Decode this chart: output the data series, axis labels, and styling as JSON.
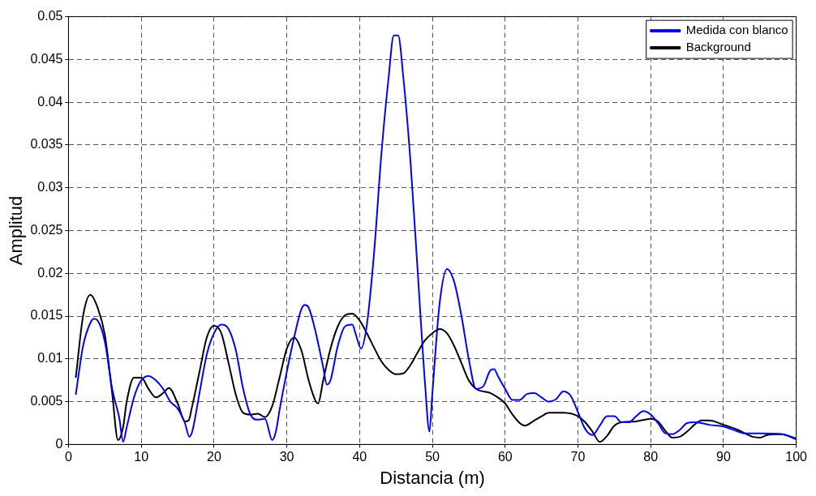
{
  "chart_data": {
    "type": "line",
    "xlabel": "Distancia (m)",
    "ylabel": "Amplitud",
    "xlim": [
      0,
      100
    ],
    "ylim": [
      0,
      0.05
    ],
    "xticks": [
      0,
      10,
      20,
      30,
      40,
      50,
      60,
      70,
      80,
      90,
      100
    ],
    "yticks": [
      0,
      0.005,
      0.01,
      0.015,
      0.02,
      0.025,
      0.03,
      0.035,
      0.04,
      0.045,
      0.05
    ],
    "grid": true,
    "legend": "top right",
    "marker": "none",
    "line_style": "solid",
    "series": [
      {
        "name": "Medida con blanco",
        "color": "#0000ff",
        "x": [
          1,
          2,
          3,
          3.5,
          4,
          5,
          6,
          7,
          7.5,
          8,
          9,
          10,
          11,
          12,
          13,
          14,
          15,
          16,
          16.6,
          17,
          18,
          19,
          20,
          21,
          22,
          23,
          24,
          25,
          26,
          27,
          28,
          28.5,
          29,
          30,
          31,
          32,
          32.5,
          33,
          34,
          35,
          35.5,
          36,
          37,
          38,
          39,
          39.5,
          40.2,
          41,
          42,
          43,
          44,
          44.7,
          45.3,
          46,
          47,
          48,
          49,
          49.6,
          50,
          51,
          52,
          53,
          54,
          55,
          56,
          57,
          58,
          58.5,
          59,
          60,
          61,
          62,
          63,
          64,
          65,
          66,
          67,
          68,
          69,
          70,
          71,
          72,
          73,
          74,
          75,
          76,
          77,
          78,
          79,
          80,
          81,
          82,
          83,
          84,
          85,
          86,
          87,
          88,
          90,
          92,
          93,
          95,
          98,
          100
        ],
        "values": [
          0.0058,
          0.0115,
          0.0142,
          0.0147,
          0.0145,
          0.012,
          0.0065,
          0.003,
          0.0003,
          0.002,
          0.0055,
          0.0075,
          0.008,
          0.0075,
          0.0065,
          0.005,
          0.0042,
          0.0025,
          0.0009,
          0.0015,
          0.006,
          0.0105,
          0.013,
          0.014,
          0.0135,
          0.011,
          0.0065,
          0.0035,
          0.0029,
          0.003,
          0.0005,
          0.0015,
          0.004,
          0.0085,
          0.0125,
          0.0158,
          0.0163,
          0.016,
          0.013,
          0.009,
          0.007,
          0.0075,
          0.0115,
          0.0138,
          0.014,
          0.0128,
          0.0112,
          0.014,
          0.0225,
          0.034,
          0.043,
          0.0478,
          0.0478,
          0.043,
          0.033,
          0.02,
          0.007,
          0.0015,
          0.006,
          0.0165,
          0.0205,
          0.019,
          0.015,
          0.01,
          0.0065,
          0.0068,
          0.0087,
          0.0088,
          0.008,
          0.0065,
          0.0052,
          0.0052,
          0.0059,
          0.006,
          0.0055,
          0.005,
          0.0053,
          0.0062,
          0.0057,
          0.0038,
          0.0018,
          0.0011,
          0.0022,
          0.0033,
          0.0033,
          0.0026,
          0.0026,
          0.0033,
          0.0039,
          0.0035,
          0.0025,
          0.0013,
          0.0012,
          0.0017,
          0.0025,
          0.0026,
          0.0025,
          0.0023,
          0.0021,
          0.0015,
          0.0013,
          0.0013,
          0.0012,
          0.0007
        ]
      },
      {
        "name": "Background",
        "color": "#000000",
        "x": [
          1,
          2,
          3,
          4,
          5,
          6,
          6.8,
          7.5,
          8,
          9,
          10,
          11,
          12,
          13,
          13.8,
          15,
          16,
          16.5,
          17,
          18,
          19,
          20,
          21,
          22,
          23,
          24,
          25,
          26,
          27,
          28,
          29,
          30,
          31,
          32,
          33,
          34,
          34.3,
          35,
          36,
          37,
          38,
          39,
          40,
          41,
          42,
          43,
          44,
          45,
          46,
          47,
          48,
          49,
          50,
          51,
          52,
          53,
          54,
          55,
          56,
          58,
          59,
          60,
          61,
          62,
          62.7,
          64,
          65,
          66,
          68,
          70,
          71,
          72,
          73,
          74,
          75,
          76,
          78,
          80,
          81,
          82,
          83,
          84,
          85,
          86,
          87,
          88,
          90,
          92,
          94,
          95,
          96,
          98,
          100
        ],
        "values": [
          0.0078,
          0.015,
          0.0175,
          0.016,
          0.0128,
          0.006,
          0.0005,
          0.002,
          0.005,
          0.0078,
          0.0078,
          0.0065,
          0.0055,
          0.006,
          0.0066,
          0.0048,
          0.0027,
          0.0028,
          0.0045,
          0.0085,
          0.0125,
          0.0139,
          0.013,
          0.0095,
          0.0058,
          0.0037,
          0.0035,
          0.0036,
          0.0032,
          0.0045,
          0.0078,
          0.0112,
          0.0125,
          0.011,
          0.0075,
          0.005,
          0.0048,
          0.0075,
          0.0112,
          0.0138,
          0.0151,
          0.0153,
          0.0145,
          0.013,
          0.0113,
          0.0097,
          0.0087,
          0.0082,
          0.0083,
          0.0093,
          0.0108,
          0.0122,
          0.013,
          0.0135,
          0.013,
          0.0115,
          0.0095,
          0.0075,
          0.0065,
          0.006,
          0.0055,
          0.0048,
          0.0035,
          0.0025,
          0.0022,
          0.0028,
          0.0033,
          0.0037,
          0.0037,
          0.0033,
          0.0026,
          0.0015,
          0.0003,
          0.001,
          0.0022,
          0.0026,
          0.0027,
          0.003,
          0.0027,
          0.0016,
          0.0008,
          0.0009,
          0.0015,
          0.0023,
          0.0028,
          0.0028,
          0.0023,
          0.0017,
          0.0009,
          0.0008,
          0.0011,
          0.0012,
          0.0006
        ]
      }
    ]
  }
}
